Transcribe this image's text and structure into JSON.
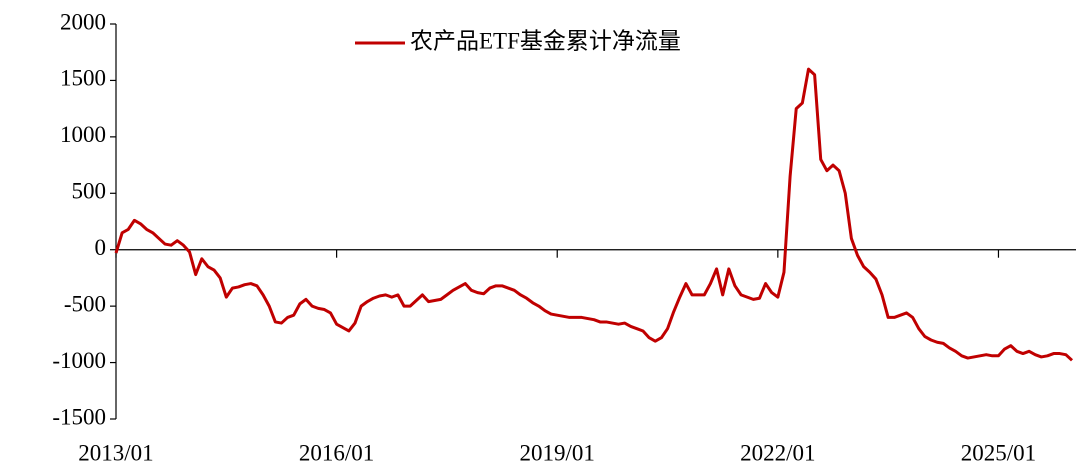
{
  "chart_data": {
    "type": "line",
    "x": [
      "2013/01",
      "2013/02",
      "2013/03",
      "2013/04",
      "2013/05",
      "2013/06",
      "2013/07",
      "2013/08",
      "2013/09",
      "2013/10",
      "2013/11",
      "2013/12",
      "2014/01",
      "2014/02",
      "2014/03",
      "2014/04",
      "2014/05",
      "2014/06",
      "2014/07",
      "2014/08",
      "2014/09",
      "2014/10",
      "2014/11",
      "2014/12",
      "2015/01",
      "2015/02",
      "2015/03",
      "2015/04",
      "2015/05",
      "2015/06",
      "2015/07",
      "2015/08",
      "2015/09",
      "2015/10",
      "2015/11",
      "2015/12",
      "2016/01",
      "2016/02",
      "2016/03",
      "2016/04",
      "2016/05",
      "2016/06",
      "2016/07",
      "2016/08",
      "2016/09",
      "2016/10",
      "2016/11",
      "2016/12",
      "2017/01",
      "2017/02",
      "2017/03",
      "2017/04",
      "2017/05",
      "2017/06",
      "2017/07",
      "2017/08",
      "2017/09",
      "2017/10",
      "2017/11",
      "2017/12",
      "2018/01",
      "2018/02",
      "2018/03",
      "2018/04",
      "2018/05",
      "2018/06",
      "2018/07",
      "2018/08",
      "2018/09",
      "2018/10",
      "2018/11",
      "2018/12",
      "2019/01",
      "2019/02",
      "2019/03",
      "2019/04",
      "2019/05",
      "2019/06",
      "2019/07",
      "2019/08",
      "2019/09",
      "2019/10",
      "2019/11",
      "2019/12",
      "2020/01",
      "2020/02",
      "2020/03",
      "2020/04",
      "2020/05",
      "2020/06",
      "2020/07",
      "2020/08",
      "2020/09",
      "2020/10",
      "2020/11",
      "2020/12",
      "2021/01",
      "2021/02",
      "2021/03",
      "2021/04",
      "2021/05",
      "2021/06",
      "2021/07",
      "2021/08",
      "2021/09",
      "2021/10",
      "2021/11",
      "2021/12",
      "2022/01",
      "2022/02",
      "2022/03",
      "2022/04",
      "2022/05",
      "2022/06",
      "2022/07",
      "2022/08",
      "2022/09",
      "2022/10",
      "2022/11",
      "2022/12",
      "2023/01",
      "2023/02",
      "2023/03",
      "2023/04",
      "2023/05",
      "2023/06",
      "2023/07",
      "2023/08",
      "2023/09",
      "2023/10",
      "2023/11",
      "2023/12",
      "2024/01",
      "2024/02",
      "2024/03",
      "2024/04",
      "2024/05",
      "2024/06",
      "2024/07",
      "2024/08",
      "2024/09",
      "2024/10",
      "2024/11",
      "2024/12",
      "2025/01",
      "2025/02",
      "2025/03",
      "2025/04",
      "2025/05",
      "2025/06",
      "2025/07",
      "2025/08",
      "2025/09",
      "2025/10",
      "2025/11",
      "2025/12",
      "2026/01"
    ],
    "series": [
      {
        "name": "农产品ETF基金累计净流量",
        "color": "#c00000",
        "values": [
          -30,
          150,
          180,
          260,
          230,
          180,
          150,
          100,
          50,
          40,
          80,
          40,
          -20,
          -220,
          -80,
          -150,
          -180,
          -250,
          -420,
          -340,
          -330,
          -310,
          -300,
          -320,
          -400,
          -500,
          -640,
          -650,
          -600,
          -580,
          -480,
          -440,
          -500,
          -520,
          -530,
          -560,
          -660,
          -690,
          -720,
          -650,
          -500,
          -460,
          -430,
          -410,
          -400,
          -420,
          -400,
          -500,
          -500,
          -450,
          -400,
          -460,
          -450,
          -440,
          -400,
          -360,
          -330,
          -300,
          -360,
          -380,
          -390,
          -340,
          -320,
          -320,
          -340,
          -360,
          -400,
          -430,
          -470,
          -500,
          -540,
          -570,
          -580,
          -590,
          -600,
          -600,
          -600,
          -610,
          -620,
          -640,
          -640,
          -650,
          -660,
          -650,
          -680,
          -700,
          -720,
          -780,
          -810,
          -780,
          -700,
          -550,
          -420,
          -300,
          -400,
          -400,
          -400,
          -300,
          -170,
          -400,
          -170,
          -320,
          -400,
          -420,
          -440,
          -430,
          -300,
          -380,
          -420,
          -200,
          650,
          1250,
          1300,
          1600,
          1550,
          800,
          700,
          750,
          700,
          500,
          100,
          -50,
          -150,
          -200,
          -260,
          -400,
          -600,
          -600,
          -580,
          -560,
          -600,
          -700,
          -770,
          -800,
          -820,
          -830,
          -870,
          -900,
          -940,
          -960,
          -950,
          -940,
          -930,
          -940,
          -940,
          -880,
          -850,
          -900,
          -920,
          -900,
          -930,
          -950,
          -940,
          -920,
          -920,
          -930,
          -980
        ]
      }
    ],
    "xticks": [
      "2013/01",
      "2016/01",
      "2019/01",
      "2022/01",
      "2025/01"
    ],
    "ylim": [
      -1500,
      2000
    ],
    "yticks": [
      -1500,
      -1000,
      -500,
      0,
      500,
      1000,
      1500,
      2000
    ],
    "legend": "top"
  }
}
